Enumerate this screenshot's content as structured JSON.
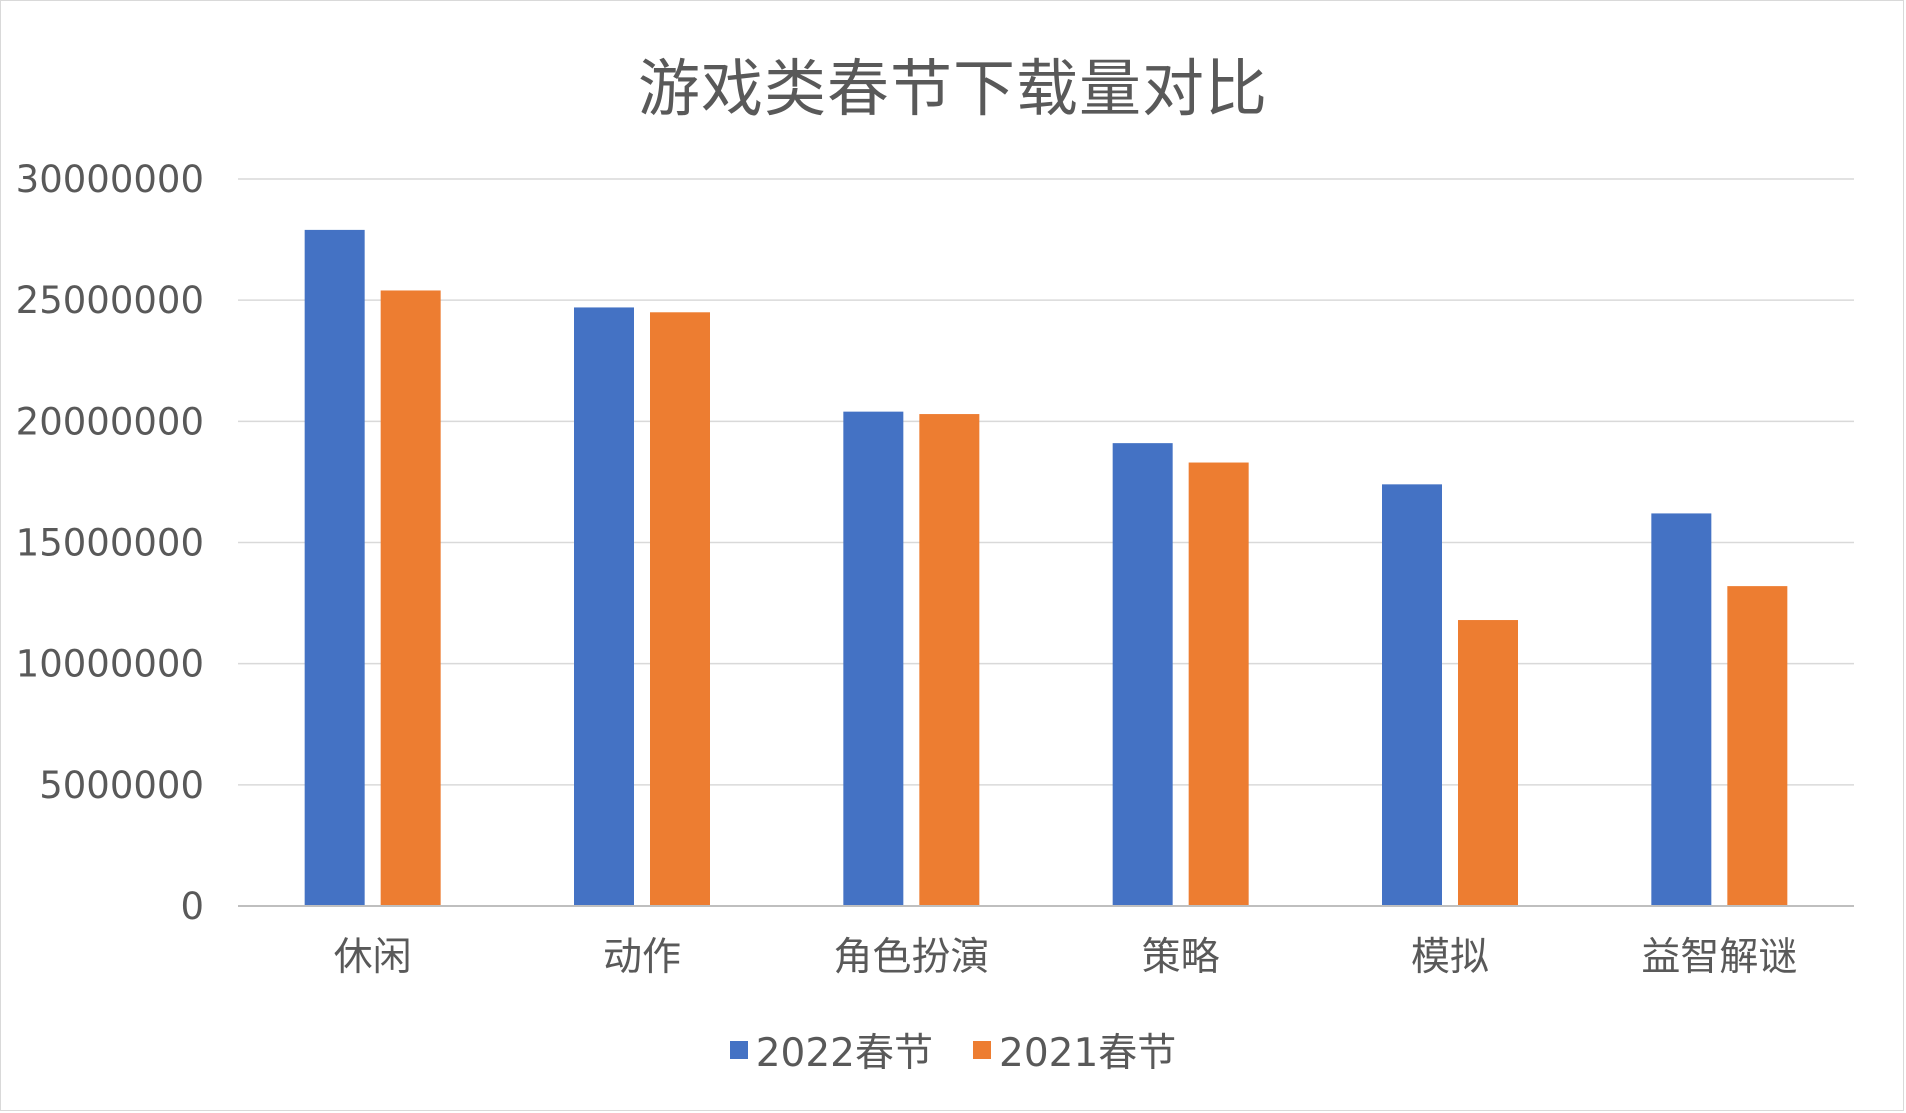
{
  "chart_data": {
    "type": "bar",
    "title": "游戏类春节下载量对比",
    "categories": [
      "休闲",
      "动作",
      "角色扮演",
      "策略",
      "模拟",
      "益智解谜"
    ],
    "series": [
      {
        "name": "2022春节",
        "color": "#4472c4",
        "values": [
          27900000,
          24700000,
          20400000,
          19100000,
          17400000,
          16200000
        ]
      },
      {
        "name": "2021春节",
        "color": "#ed7d31",
        "values": [
          25400000,
          24500000,
          20300000,
          18300000,
          11800000,
          13200000
        ]
      }
    ],
    "ylim": [
      0,
      30000000
    ],
    "yticks": [
      0,
      5000000,
      10000000,
      15000000,
      20000000,
      25000000,
      30000000
    ],
    "ytick_labels": [
      "0",
      "5000000",
      "10000000",
      "15000000",
      "20000000",
      "25000000",
      "30000000"
    ],
    "grid": true,
    "legend_position": "bottom"
  }
}
